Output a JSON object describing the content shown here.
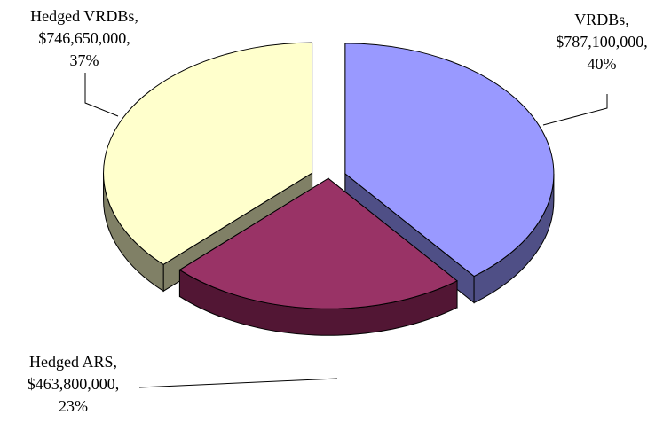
{
  "chart_data": {
    "type": "pie",
    "style": "3d-exploded",
    "title": "",
    "slices": [
      {
        "name": "VRDBs",
        "value": 787100000,
        "value_label": "$787,100,000,",
        "percent_label": "40%",
        "percent": 40,
        "color": "#9999ff",
        "side_color": "#4f4f86"
      },
      {
        "name": "Hedged ARS",
        "value": 463800000,
        "value_label": "$463,800,000,",
        "percent_label": "23%",
        "percent": 23,
        "color": "#993366",
        "side_color": "#521634"
      },
      {
        "name": "Hedged VRDBs",
        "value": 746650000,
        "value_label": "$746,650,000,",
        "percent_label": "37%",
        "percent": 37,
        "color": "#ffffcc",
        "side_color": "#808066"
      }
    ],
    "labels": {
      "vrdbs": {
        "name": "VRDBs,",
        "value": "$787,100,000,",
        "percent": "40%"
      },
      "hedged_vrdbs": {
        "name": "Hedged VRDBs,",
        "value": "$746,650,000,",
        "percent": "37%"
      },
      "hedged_ars": {
        "name": "Hedged ARS,",
        "value": "$463,800,000,",
        "percent": "23%"
      }
    }
  }
}
